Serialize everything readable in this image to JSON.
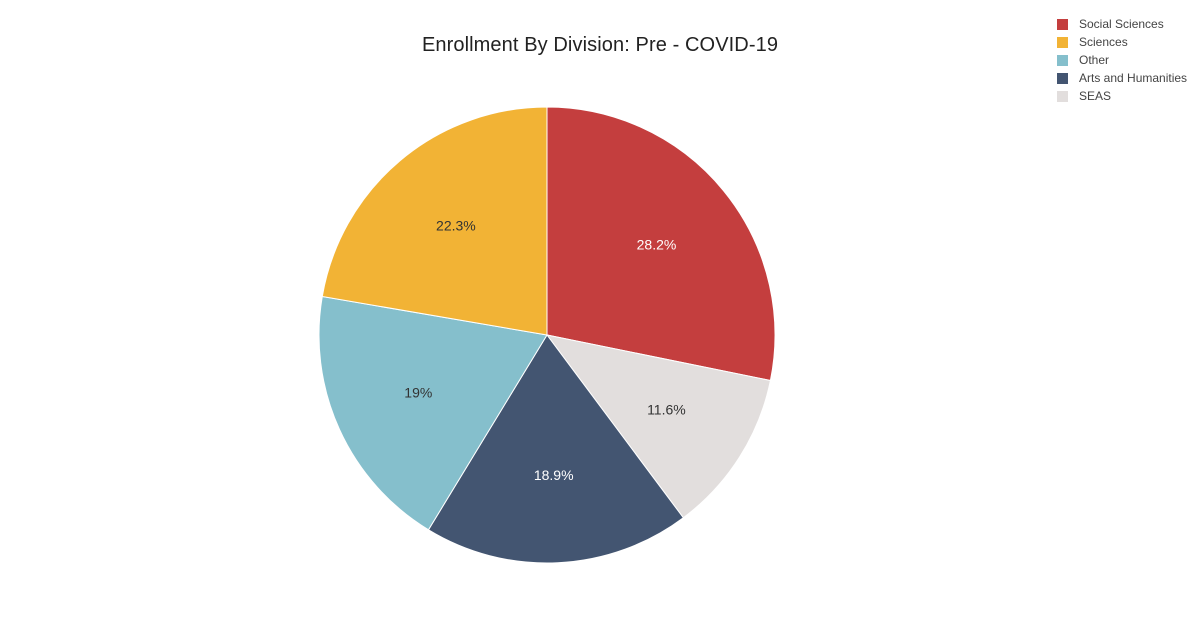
{
  "chart_data": {
    "type": "pie",
    "title": "Enrollment By Division: Pre - COVID-19",
    "legend_position": "top-right",
    "slices": [
      {
        "label": "Social Sciences",
        "value": 28.2,
        "display": "28.2%",
        "color": "#c43e3e",
        "label_color": "#ffffff"
      },
      {
        "label": "SEAS",
        "value": 11.6,
        "display": "11.6%",
        "color": "#e2dedd",
        "label_color": "#333333"
      },
      {
        "label": "Arts and Humanities",
        "value": 18.9,
        "display": "18.9%",
        "color": "#435571",
        "label_color": "#ffffff"
      },
      {
        "label": "Other",
        "value": 19.0,
        "display": "19%",
        "color": "#85bfcc",
        "label_color": "#333333"
      },
      {
        "label": "Sciences",
        "value": 22.3,
        "display": "22.3%",
        "color": "#f2b335",
        "label_color": "#333333"
      }
    ],
    "legend_order": [
      "Social Sciences",
      "Sciences",
      "Other",
      "Arts and Humanities",
      "SEAS"
    ]
  }
}
